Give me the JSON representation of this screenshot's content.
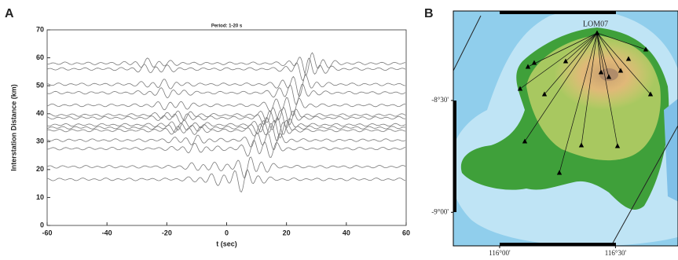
{
  "chart_data": [
    {
      "type": "waveforms",
      "panel": "A",
      "title": "Period: 1-20 s",
      "x_label": "t (sec)",
      "y_label": "Interstation Distance (km)",
      "xlim": [
        -60,
        60
      ],
      "xticks": [
        -60,
        -40,
        -20,
        0,
        20,
        40,
        60
      ],
      "ylim": [
        0,
        70
      ],
      "yticks": [
        0,
        10,
        20,
        30,
        40,
        50,
        60,
        70
      ],
      "color": "#7a7a7a",
      "series": [
        {
          "name": "Interstation Distance (km)",
          "values": [
            58,
            56,
            50.5,
            47.5,
            43,
            39.5,
            38.5,
            36,
            35,
            34,
            30.5,
            27.5,
            21,
            16.5
          ]
        }
      ]
    },
    {
      "type": "map",
      "panel": "B",
      "station": "LOM07",
      "xlim": [
        115.8,
        116.77
      ],
      "xticks": [
        {
          "value": 116.0,
          "label": "116°00'"
        },
        {
          "value": 116.5,
          "label": "116°30'"
        }
      ],
      "ylim": [
        -9.15,
        -8.1
      ],
      "yticks": [
        {
          "value": -8.5,
          "label": "-8°30'"
        },
        {
          "value": -9.0,
          "label": "-9°00'"
        }
      ]
    }
  ]
}
